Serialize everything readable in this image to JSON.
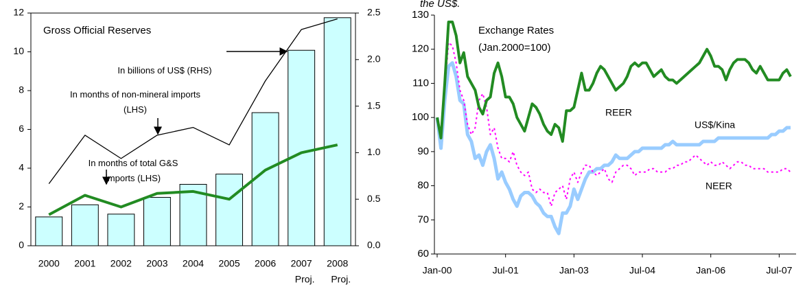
{
  "chart_data": [
    {
      "type": "combo",
      "title": "Gross Official Reserves",
      "categories": [
        "2000",
        "2001",
        "2002",
        "2003",
        "2004",
        "2005",
        "2006",
        "2007",
        "2008"
      ],
      "sublabels": [
        null,
        null,
        null,
        null,
        null,
        null,
        null,
        "Proj.",
        "Proj."
      ],
      "series": [
        {
          "name": "In billions of US$ (RHS)",
          "type": "bar",
          "axis": "y2",
          "color": "#ccffff",
          "values": [
            0.31,
            0.44,
            0.34,
            0.52,
            0.66,
            0.77,
            1.43,
            2.1,
            2.45
          ]
        },
        {
          "name": "In months of non-mineral imports (LHS)",
          "type": "line",
          "color": "#000000",
          "width": 1.3,
          "values": [
            3.2,
            5.7,
            4.5,
            5.7,
            6.1,
            5.2,
            8.5,
            11.15,
            11.7
          ]
        },
        {
          "name": "In months of total G&S imports (LHS)",
          "type": "line",
          "color": "#228b22",
          "width": 4,
          "values": [
            1.6,
            2.6,
            2.0,
            2.7,
            2.8,
            2.4,
            3.9,
            4.8,
            5.2
          ]
        }
      ],
      "ylim": [
        0,
        12
      ],
      "yticks": [
        0,
        2,
        4,
        6,
        8,
        10,
        12
      ],
      "y2lim": [
        0,
        2.5
      ],
      "y2ticks": [
        {
          "value": 0,
          "label": "0.0"
        },
        0.5,
        {
          "value": 1,
          "label": "1.0"
        },
        1.5,
        {
          "value": 2,
          "label": "2.0"
        },
        2.5
      ]
    },
    {
      "type": "line",
      "title": "Exchange Rates",
      "subtitle": "(Jan.2000=100)",
      "annotations": [
        "the US$."
      ],
      "categories": [
        "Jan-00",
        null,
        null,
        null,
        null,
        null,
        null,
        null,
        null,
        null,
        null,
        null,
        null,
        null,
        null,
        null,
        null,
        null,
        "Jul-01",
        null,
        null,
        null,
        null,
        null,
        null,
        null,
        null,
        null,
        null,
        null,
        null,
        null,
        null,
        null,
        null,
        null,
        "Jan-03",
        null,
        null,
        null,
        null,
        null,
        null,
        null,
        null,
        null,
        null,
        null,
        null,
        null,
        null,
        null,
        null,
        null,
        "Jul-04",
        null,
        null,
        null,
        null,
        null,
        null,
        null,
        null,
        null,
        null,
        null,
        null,
        null,
        null,
        null,
        null,
        null,
        "Jan-06",
        null,
        null,
        null,
        null,
        null,
        null,
        null,
        null,
        null,
        null,
        null,
        null,
        null,
        null,
        null,
        null,
        null,
        "Jul-07",
        null,
        null,
        null
      ],
      "series": [
        {
          "name": "REER",
          "color": "#228b22",
          "width": 4,
          "style": "solid",
          "values": [
            100,
            94,
            110,
            128,
            128,
            124,
            116,
            119,
            112,
            110,
            108,
            103,
            101,
            105,
            106,
            113,
            116,
            112,
            106,
            106,
            104,
            100,
            98,
            96,
            100,
            104,
            103,
            101,
            98,
            96,
            95,
            98,
            97,
            93,
            102,
            102,
            103,
            108,
            113,
            108,
            108,
            110,
            113,
            115,
            114,
            112,
            110,
            108,
            109,
            110,
            112,
            115,
            116,
            115,
            116,
            116,
            114,
            112,
            113,
            114,
            112,
            111,
            111,
            110,
            111,
            112,
            113,
            114,
            115,
            116,
            118,
            120,
            118,
            115,
            115,
            114,
            111,
            114,
            116,
            117,
            117,
            117,
            116,
            114,
            113,
            115,
            113,
            111,
            111,
            111,
            111,
            113,
            114,
            112
          ]
        },
        {
          "name": "US$/Kina",
          "color": "#99ccff",
          "width": 5,
          "style": "solid",
          "values": [
            100,
            91,
            105,
            115,
            116,
            112,
            105,
            104,
            95,
            93,
            88,
            89,
            86,
            90,
            92,
            88,
            82,
            84,
            81,
            79,
            76,
            74,
            77,
            78,
            78,
            77,
            75,
            74,
            72,
            71,
            71,
            68,
            66,
            72,
            72,
            74,
            79,
            76,
            79,
            82,
            84,
            84,
            85,
            85,
            86,
            86,
            87,
            89,
            88,
            88,
            88,
            89,
            90,
            90,
            91,
            91,
            91,
            91,
            91,
            91,
            92,
            92,
            93,
            92,
            92,
            92,
            92,
            92,
            92,
            92,
            93,
            93,
            93,
            93,
            94,
            94,
            94,
            94,
            94,
            94,
            94,
            94,
            94,
            94,
            94,
            94,
            94,
            94,
            95,
            95,
            96,
            96,
            97,
            97
          ]
        },
        {
          "name": "NEER",
          "color": "#ff00ff",
          "width": 2,
          "style": "dotted",
          "values": [
            99,
            94,
            108,
            122,
            121,
            116,
            108,
            105,
            98,
            95,
            97,
            105,
            107,
            103,
            95,
            97,
            91,
            88,
            88,
            87,
            90,
            86,
            84,
            83,
            84,
            79,
            78,
            79,
            78,
            78,
            74,
            78,
            79,
            80,
            76,
            82,
            84,
            81,
            84,
            86,
            86,
            84,
            83,
            84,
            85,
            82,
            81,
            84,
            85,
            86,
            86,
            85,
            83,
            84,
            84,
            84,
            85,
            85,
            84,
            84,
            84,
            85,
            85,
            86,
            86,
            87,
            87,
            88,
            89,
            88,
            87,
            86,
            87,
            86,
            86,
            87,
            86,
            85,
            86,
            87,
            87,
            86,
            86,
            85,
            85,
            85,
            85,
            84,
            84,
            84,
            84,
            85,
            85,
            84
          ]
        }
      ],
      "ylim": [
        60,
        130
      ],
      "yticks": [
        60,
        70,
        80,
        90,
        100,
        110,
        120,
        130
      ]
    }
  ]
}
